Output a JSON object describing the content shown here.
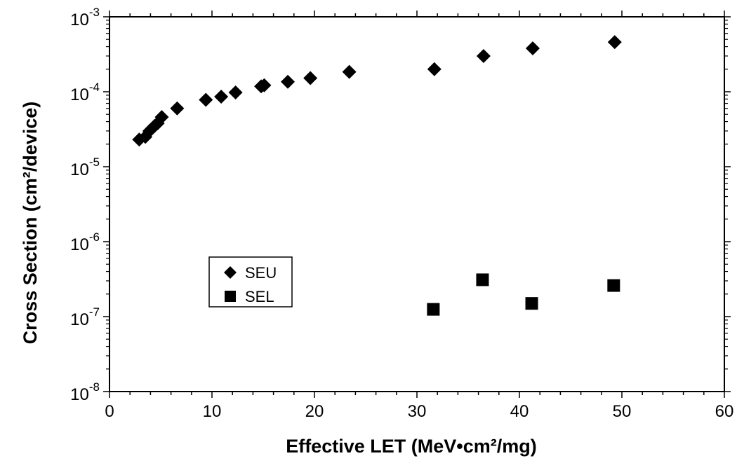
{
  "chart_data": {
    "type": "scatter",
    "title": "",
    "xlabel": "Effective LET (MeV•cm²/mg)",
    "ylabel": "Cross Section (cm²/device)",
    "xlim": [
      0,
      60
    ],
    "ylim": [
      1e-08,
      0.001
    ],
    "yscale": "log",
    "x_ticks": [
      "0",
      "10",
      "20",
      "30",
      "40",
      "50",
      "60"
    ],
    "y_ticks": [
      {
        "base": "10",
        "exp": "-8",
        "value": 1e-08
      },
      {
        "base": "10",
        "exp": "-7",
        "value": 1e-07
      },
      {
        "base": "10",
        "exp": "-6",
        "value": 1e-06
      },
      {
        "base": "10",
        "exp": "-5",
        "value": 1e-05
      },
      {
        "base": "10",
        "exp": "-4",
        "value": 0.0001
      },
      {
        "base": "10",
        "exp": "-3",
        "value": 0.001
      }
    ],
    "grid": false,
    "legend_position": "middle-left",
    "series": [
      {
        "name": "SEU",
        "marker": "diamond",
        "color": "#000000",
        "points": [
          {
            "x": 2.9,
            "y": 2.3e-05
          },
          {
            "x": 3.5,
            "y": 2.5e-05
          },
          {
            "x": 3.9,
            "y": 3e-05
          },
          {
            "x": 4.4,
            "y": 3.5e-05
          },
          {
            "x": 4.7,
            "y": 3.8e-05
          },
          {
            "x": 5.1,
            "y": 4.6e-05
          },
          {
            "x": 6.6,
            "y": 6e-05
          },
          {
            "x": 9.4,
            "y": 7.8e-05
          },
          {
            "x": 10.9,
            "y": 8.6e-05
          },
          {
            "x": 12.3,
            "y": 9.8e-05
          },
          {
            "x": 14.8,
            "y": 0.000118
          },
          {
            "x": 15.1,
            "y": 0.000122
          },
          {
            "x": 17.4,
            "y": 0.000136
          },
          {
            "x": 19.6,
            "y": 0.000152
          },
          {
            "x": 23.4,
            "y": 0.000184
          },
          {
            "x": 31.7,
            "y": 0.0002
          },
          {
            "x": 36.5,
            "y": 0.0003
          },
          {
            "x": 41.3,
            "y": 0.00038
          },
          {
            "x": 49.3,
            "y": 0.00046
          }
        ]
      },
      {
        "name": "SEL",
        "marker": "square",
        "color": "#000000",
        "points": [
          {
            "x": 31.6,
            "y": 1.25e-07
          },
          {
            "x": 36.4,
            "y": 3.1e-07
          },
          {
            "x": 41.2,
            "y": 1.5e-07
          },
          {
            "x": 49.2,
            "y": 2.6e-07
          }
        ]
      }
    ]
  }
}
